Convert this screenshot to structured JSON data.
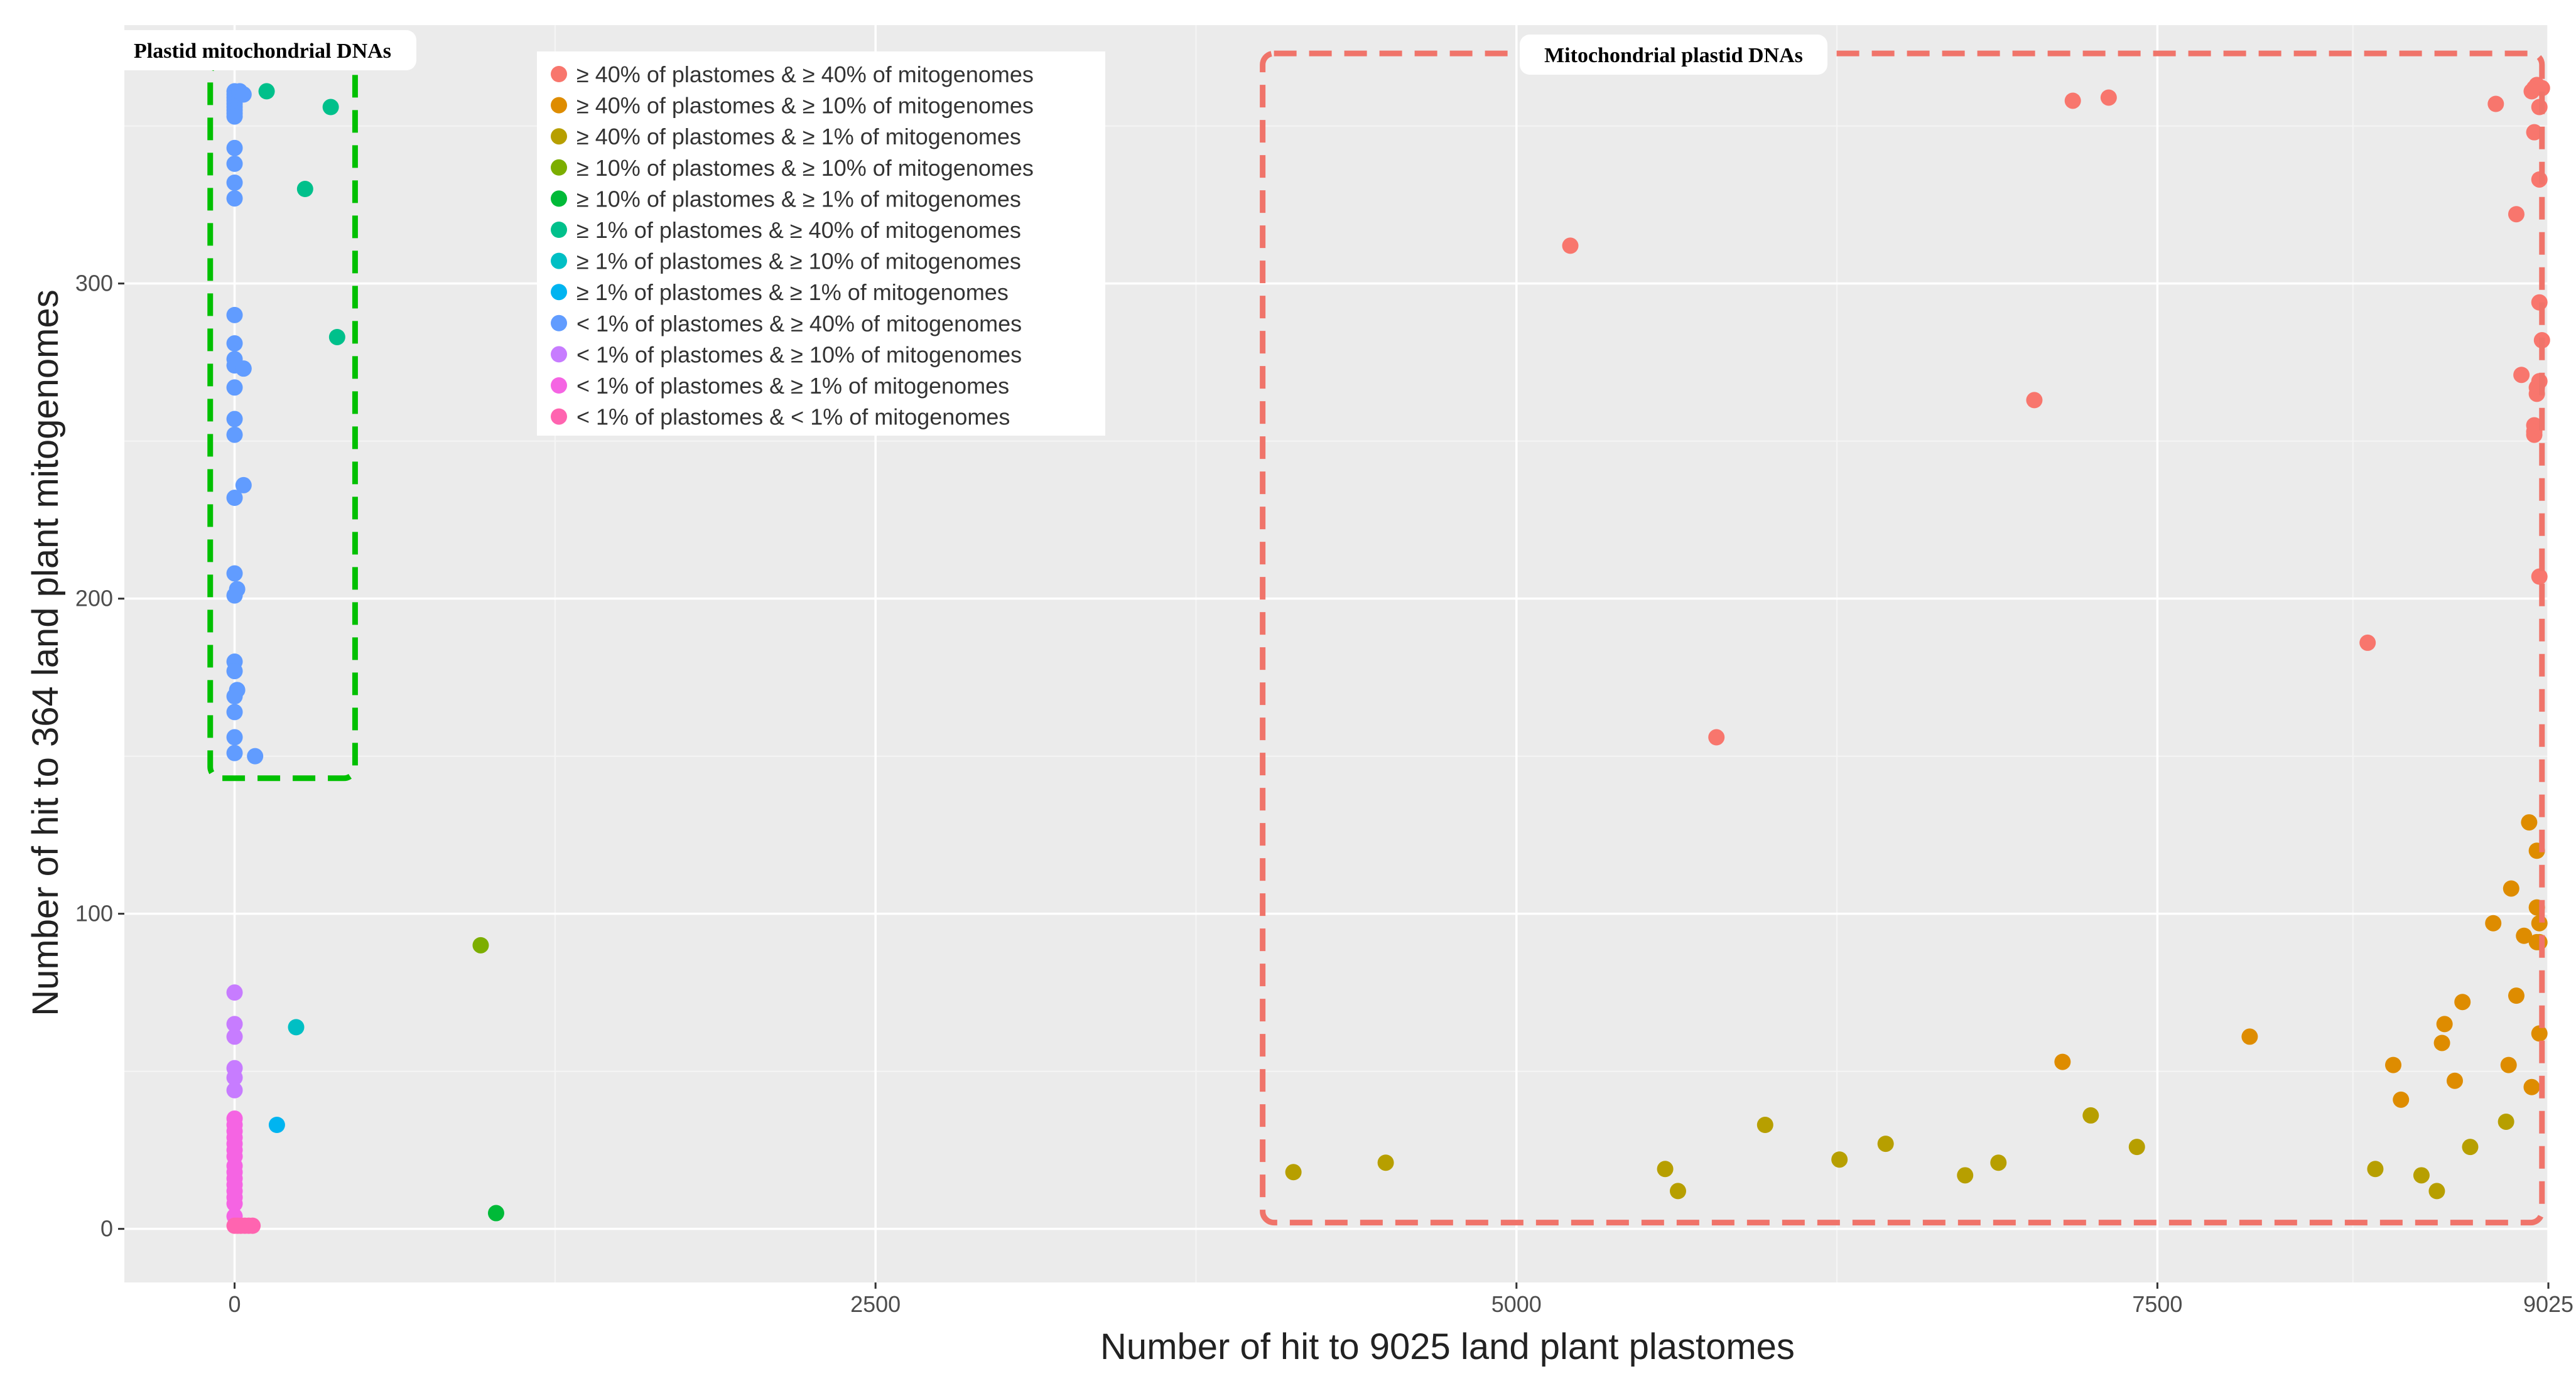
{
  "chart_data": {
    "type": "scatter",
    "xlabel": "Number of hit to 9025 land plant plastomes",
    "ylabel": "Number of hit to 364 land plant mitogenomes",
    "xlim": [
      -430,
      9025
    ],
    "ylim": [
      -17,
      382
    ],
    "x_ticks": [
      0,
      2500,
      5000,
      7500,
      9025
    ],
    "x_tick_labels": [
      "0",
      "2500",
      "5000",
      "7500",
      "9025"
    ],
    "y_ticks": [
      0,
      100,
      200,
      300
    ],
    "y_tick_labels": [
      "0",
      "100",
      "200",
      "300"
    ],
    "grid": true,
    "legend_position": "top-left",
    "boxes": [
      {
        "label": "Plastid mitochondrial DNAs",
        "color": "#00c000",
        "x_range": [
          -95,
          470
        ],
        "y_range": [
          143,
          370
        ]
      },
      {
        "label": "Mitochondrial plastid DNAs",
        "color": "#f0746a",
        "x_range": [
          4010,
          9000
        ],
        "y_range": [
          2,
          373
        ]
      }
    ],
    "series": [
      {
        "name": "≥ 40% of plastomes & ≥ 40% of mitogenomes",
        "color": "#F8766D",
        "points": [
          [
            5210,
            312
          ],
          [
            5780,
            156
          ],
          [
            7020,
            263
          ],
          [
            7170,
            358
          ],
          [
            7310,
            359
          ],
          [
            8320,
            186
          ],
          [
            8820,
            357
          ],
          [
            8900,
            322
          ],
          [
            8920,
            271
          ],
          [
            8960,
            361
          ],
          [
            8970,
            362
          ],
          [
            8980,
            363
          ],
          [
            9000,
            362
          ],
          [
            8990,
            356
          ],
          [
            8970,
            348
          ],
          [
            8990,
            333
          ],
          [
            8990,
            294
          ],
          [
            9000,
            282
          ],
          [
            8990,
            269
          ],
          [
            8980,
            267
          ],
          [
            8980,
            265
          ],
          [
            8970,
            255
          ],
          [
            8970,
            253
          ],
          [
            8970,
            252
          ],
          [
            8990,
            207
          ]
        ]
      },
      {
        "name": "≥ 40% of plastomes & ≥ 10% of mitogenomes",
        "color": "#DE8C00",
        "points": [
          [
            7130,
            53
          ],
          [
            7860,
            61
          ],
          [
            8420,
            52
          ],
          [
            8450,
            41
          ],
          [
            8610,
            59
          ],
          [
            8620,
            65
          ],
          [
            8660,
            47
          ],
          [
            8690,
            72
          ],
          [
            8810,
            97
          ],
          [
            8880,
            108
          ],
          [
            8900,
            74
          ],
          [
            8870,
            52
          ],
          [
            8930,
            93
          ],
          [
            8950,
            129
          ],
          [
            8960,
            45
          ],
          [
            8980,
            120
          ],
          [
            8980,
            102
          ],
          [
            8990,
            97
          ],
          [
            8990,
            91
          ],
          [
            8980,
            91
          ],
          [
            8990,
            62
          ]
        ]
      },
      {
        "name": "≥ 40% of plastomes & ≥ 1% of mitogenomes",
        "color": "#B79F00",
        "points": [
          [
            4130,
            18
          ],
          [
            4490,
            21
          ],
          [
            5580,
            19
          ],
          [
            5630,
            12
          ],
          [
            5970,
            33
          ],
          [
            6260,
            22
          ],
          [
            6440,
            27
          ],
          [
            6750,
            17
          ],
          [
            6880,
            21
          ],
          [
            7240,
            36
          ],
          [
            7420,
            26
          ],
          [
            8350,
            19
          ],
          [
            8530,
            17
          ],
          [
            8590,
            12
          ],
          [
            8720,
            26
          ],
          [
            8860,
            34
          ]
        ]
      },
      {
        "name": "≥ 10% of plastomes & ≥ 10% of mitogenomes",
        "color": "#7CAE00",
        "points": [
          [
            960,
            90
          ]
        ]
      },
      {
        "name": "≥ 10% of plastomes & ≥ 1% of mitogenomes",
        "color": "#00BA38",
        "points": [
          [
            1020,
            5
          ]
        ]
      },
      {
        "name": "≥ 1% of plastomes & ≥ 40% of mitogenomes",
        "color": "#00C08B",
        "points": [
          [
            125,
            361
          ],
          [
            375,
            356
          ],
          [
            275,
            330
          ],
          [
            400,
            283
          ]
        ]
      },
      {
        "name": "≥ 1% of plastomes & ≥ 10% of mitogenomes",
        "color": "#00BFC4",
        "points": [
          [
            240,
            64
          ]
        ]
      },
      {
        "name": "≥ 1% of plastomes & ≥ 1% of mitogenomes",
        "color": "#00B4F0",
        "points": [
          [
            165,
            33
          ]
        ]
      },
      {
        "name": "< 1% of plastomes & ≥ 40% of mitogenomes",
        "color": "#619CFF",
        "points": [
          [
            0,
            361
          ],
          [
            0,
            360
          ],
          [
            0,
            359
          ],
          [
            0,
            358
          ],
          [
            0,
            357
          ],
          [
            0,
            356
          ],
          [
            0,
            355
          ],
          [
            0,
            354
          ],
          [
            0,
            353
          ],
          [
            20,
            361
          ],
          [
            35,
            360
          ],
          [
            0,
            343
          ],
          [
            0,
            338
          ],
          [
            0,
            332
          ],
          [
            0,
            327
          ],
          [
            0,
            290
          ],
          [
            0,
            281
          ],
          [
            0,
            276
          ],
          [
            0,
            274
          ],
          [
            35,
            273
          ],
          [
            0,
            267
          ],
          [
            0,
            257
          ],
          [
            0,
            252
          ],
          [
            35,
            236
          ],
          [
            0,
            232
          ],
          [
            0,
            208
          ],
          [
            10,
            203
          ],
          [
            0,
            201
          ],
          [
            0,
            180
          ],
          [
            0,
            177
          ],
          [
            10,
            171
          ],
          [
            0,
            169
          ],
          [
            0,
            164
          ],
          [
            0,
            156
          ],
          [
            0,
            151
          ],
          [
            80,
            150
          ]
        ]
      },
      {
        "name": "< 1% of plastomes & ≥ 10% of mitogenomes",
        "color": "#C77CFF",
        "points": [
          [
            0,
            75
          ],
          [
            0,
            65
          ],
          [
            0,
            61
          ],
          [
            0,
            51
          ],
          [
            0,
            48
          ],
          [
            0,
            44
          ]
        ]
      },
      {
        "name": "< 1% of plastomes & ≥ 1% of mitogenomes",
        "color": "#F564E3",
        "points": [
          [
            0,
            35
          ],
          [
            0,
            33
          ],
          [
            0,
            31
          ],
          [
            0,
            29
          ],
          [
            0,
            27
          ],
          [
            0,
            25
          ],
          [
            0,
            23
          ],
          [
            0,
            20
          ],
          [
            0,
            18
          ],
          [
            0,
            16
          ],
          [
            0,
            14
          ],
          [
            0,
            12
          ],
          [
            0,
            10
          ],
          [
            0,
            8
          ],
          [
            0,
            4
          ]
        ]
      },
      {
        "name": "< 1% of plastomes & < 1% of mitogenomes",
        "color": "#FF64B0",
        "points": [
          [
            0,
            1
          ],
          [
            12,
            1
          ],
          [
            25,
            1
          ],
          [
            40,
            1
          ],
          [
            55,
            1
          ],
          [
            70,
            1
          ]
        ]
      }
    ]
  }
}
